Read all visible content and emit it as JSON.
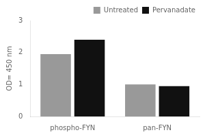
{
  "chart_data": {
    "type": "bar",
    "categories": [
      "phospho-FYN",
      "pan-FYN"
    ],
    "series": [
      {
        "name": "Untreated",
        "color": "#999999",
        "values": [
          1.95,
          1.0
        ]
      },
      {
        "name": "Pervanadate",
        "color": "#111111",
        "values": [
          2.4,
          0.95
        ]
      }
    ],
    "ylabel": "OD= 450 nm",
    "ylim": [
      0,
      3
    ],
    "yticks": [
      0,
      1,
      2,
      3
    ],
    "grid": false,
    "legend": "upper right"
  }
}
